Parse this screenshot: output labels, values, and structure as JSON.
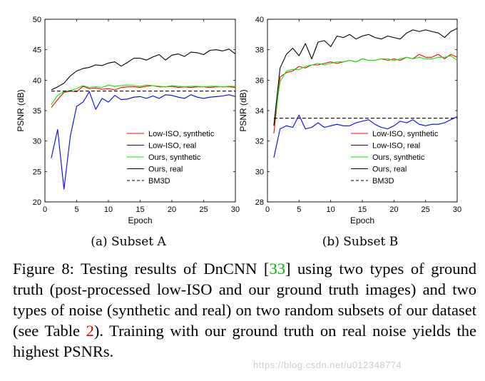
{
  "chart_data": [
    {
      "type": "line",
      "subtitle": "(a) Subset A",
      "xlabel": "Epoch",
      "ylabel": "PSNR (dB)",
      "xlim": [
        0,
        30
      ],
      "ylim": [
        20,
        50
      ],
      "xticks": [
        0,
        5,
        10,
        15,
        20,
        25,
        30
      ],
      "yticks": [
        20,
        25,
        30,
        35,
        40,
        45,
        50
      ],
      "x": [
        1,
        2,
        3,
        4,
        5,
        6,
        7,
        8,
        9,
        10,
        11,
        12,
        13,
        14,
        15,
        16,
        17,
        18,
        19,
        20,
        21,
        22,
        23,
        24,
        25,
        26,
        27,
        28,
        29,
        30
      ],
      "series": [
        {
          "name": "Low-ISO, synthetic",
          "color": "#ff0000",
          "dash": "solid",
          "values": [
            35.5,
            36.8,
            38.0,
            38.2,
            38.1,
            39.0,
            38.6,
            38.7,
            38.5,
            38.6,
            38.4,
            38.8,
            38.9,
            38.9,
            38.8,
            39.0,
            39.1,
            38.9,
            38.9,
            39.0,
            38.8,
            38.9,
            38.8,
            38.9,
            38.9,
            38.8,
            38.9,
            38.9,
            38.9,
            38.8
          ]
        },
        {
          "name": "Low-ISO, real",
          "color": "#0000ff",
          "dash": "solid",
          "values": [
            27.2,
            31.9,
            22.1,
            30.8,
            35.7,
            36.4,
            38.1,
            35.2,
            37.0,
            36.4,
            37.5,
            36.8,
            36.9,
            37.2,
            37.3,
            37.0,
            37.4,
            37.0,
            37.6,
            37.5,
            37.2,
            37.0,
            37.6,
            37.2,
            37.0,
            37.2,
            37.3,
            37.4,
            37.6,
            37.3
          ]
        },
        {
          "name": "Ours, synthetic",
          "color": "#00ee00",
          "dash": "solid",
          "values": [
            36.0,
            37.5,
            38.1,
            38.3,
            38.6,
            39.1,
            38.8,
            38.9,
            38.8,
            39.2,
            39.0,
            39.1,
            39.2,
            39.1,
            39.0,
            39.2,
            39.1,
            39.0,
            38.9,
            39.1,
            39.0,
            38.9,
            39.0,
            39.0,
            38.9,
            39.0,
            39.0,
            38.9,
            39.0,
            39.0
          ]
        },
        {
          "name": "Ours, real",
          "color": "#000000",
          "dash": "solid",
          "values": [
            38.4,
            38.9,
            39.5,
            40.7,
            41.5,
            41.9,
            42.1,
            42.5,
            42.4,
            42.8,
            43.0,
            42.3,
            42.9,
            43.6,
            43.6,
            43.3,
            43.8,
            44.2,
            43.3,
            44.1,
            44.3,
            43.9,
            44.6,
            44.5,
            44.2,
            44.9,
            45.0,
            44.8,
            45.1,
            44.3
          ]
        },
        {
          "name": "BM3D",
          "color": "#000000",
          "dash": "dashed",
          "values": [
            38.2,
            38.2,
            38.2,
            38.2,
            38.2,
            38.2,
            38.2,
            38.2,
            38.2,
            38.2,
            38.2,
            38.2,
            38.2,
            38.2,
            38.2,
            38.2,
            38.2,
            38.2,
            38.2,
            38.2,
            38.2,
            38.2,
            38.2,
            38.2,
            38.2,
            38.2,
            38.2,
            38.2,
            38.2,
            38.2
          ]
        }
      ]
    },
    {
      "type": "line",
      "subtitle": "(b) Subset B",
      "xlabel": "Epoch",
      "ylabel": "PSNR (dB)",
      "xlim": [
        0,
        30
      ],
      "ylim": [
        28,
        40
      ],
      "xticks": [
        0,
        5,
        10,
        15,
        20,
        25,
        30
      ],
      "yticks": [
        28,
        30,
        32,
        34,
        36,
        38,
        40
      ],
      "x": [
        1,
        2,
        3,
        4,
        5,
        6,
        7,
        8,
        9,
        10,
        11,
        12,
        13,
        14,
        15,
        16,
        17,
        18,
        19,
        20,
        21,
        22,
        23,
        24,
        25,
        26,
        27,
        28,
        29,
        30
      ],
      "series": [
        {
          "name": "Low-ISO, synthetic",
          "color": "#ff0000",
          "dash": "solid",
          "values": [
            32.5,
            36.2,
            36.5,
            36.6,
            36.9,
            36.8,
            37.0,
            37.0,
            37.1,
            37.2,
            37.1,
            37.2,
            37.3,
            37.2,
            37.4,
            37.3,
            37.3,
            37.4,
            37.3,
            37.4,
            37.3,
            37.5,
            37.4,
            37.7,
            37.5,
            37.5,
            37.7,
            37.4,
            37.7,
            37.5
          ]
        },
        {
          "name": "Low-ISO, real",
          "color": "#0000ff",
          "dash": "solid",
          "values": [
            30.9,
            32.8,
            33.0,
            32.9,
            33.7,
            32.8,
            32.9,
            33.2,
            32.9,
            33.0,
            33.1,
            33.0,
            33.0,
            33.2,
            33.3,
            33.4,
            33.1,
            32.9,
            32.8,
            33.0,
            33.3,
            33.2,
            33.4,
            33.1,
            33.0,
            33.1,
            33.1,
            33.2,
            33.4,
            33.6
          ]
        },
        {
          "name": "Ours, synthetic",
          "color": "#00ee00",
          "dash": "solid",
          "values": [
            33.0,
            35.9,
            36.6,
            36.7,
            36.7,
            36.9,
            37.0,
            37.1,
            37.0,
            37.1,
            37.2,
            37.2,
            37.3,
            37.2,
            37.4,
            37.3,
            37.3,
            37.4,
            37.4,
            37.3,
            37.4,
            37.5,
            37.4,
            37.5,
            37.4,
            37.4,
            37.5,
            37.5,
            37.6,
            37.3
          ]
        },
        {
          "name": "Ours, real",
          "color": "#000000",
          "dash": "solid",
          "values": [
            33.0,
            36.8,
            37.7,
            38.1,
            37.6,
            38.4,
            37.4,
            38.5,
            38.6,
            38.2,
            38.9,
            38.8,
            39.0,
            38.7,
            38.9,
            39.0,
            38.8,
            38.7,
            38.9,
            38.8,
            38.7,
            39.1,
            39.3,
            39.2,
            39.3,
            39.2,
            39.1,
            38.8,
            39.2,
            39.4
          ]
        },
        {
          "name": "BM3D",
          "color": "#000000",
          "dash": "dashed",
          "values": [
            33.5,
            33.5,
            33.5,
            33.5,
            33.5,
            33.5,
            33.5,
            33.5,
            33.5,
            33.5,
            33.5,
            33.5,
            33.5,
            33.5,
            33.5,
            33.5,
            33.5,
            33.5,
            33.5,
            33.5,
            33.5,
            33.5,
            33.5,
            33.5,
            33.5,
            33.5,
            33.5,
            33.5,
            33.5,
            33.5
          ]
        }
      ]
    }
  ],
  "figure_caption": {
    "prefix": "Figure 8: Testing results of DnCNN [",
    "ref1": "33",
    "middle": "] using two types of ground truth (post-processed low-ISO and our ground truth images) and two types of noise (synthetic and real) on two random subsets of our dataset (see Table ",
    "ref2": "2",
    "suffix": "). Training with our ground truth on real noise yields the highest PSNRs."
  },
  "watermark": "https://blog.csdn.net/u012348774"
}
